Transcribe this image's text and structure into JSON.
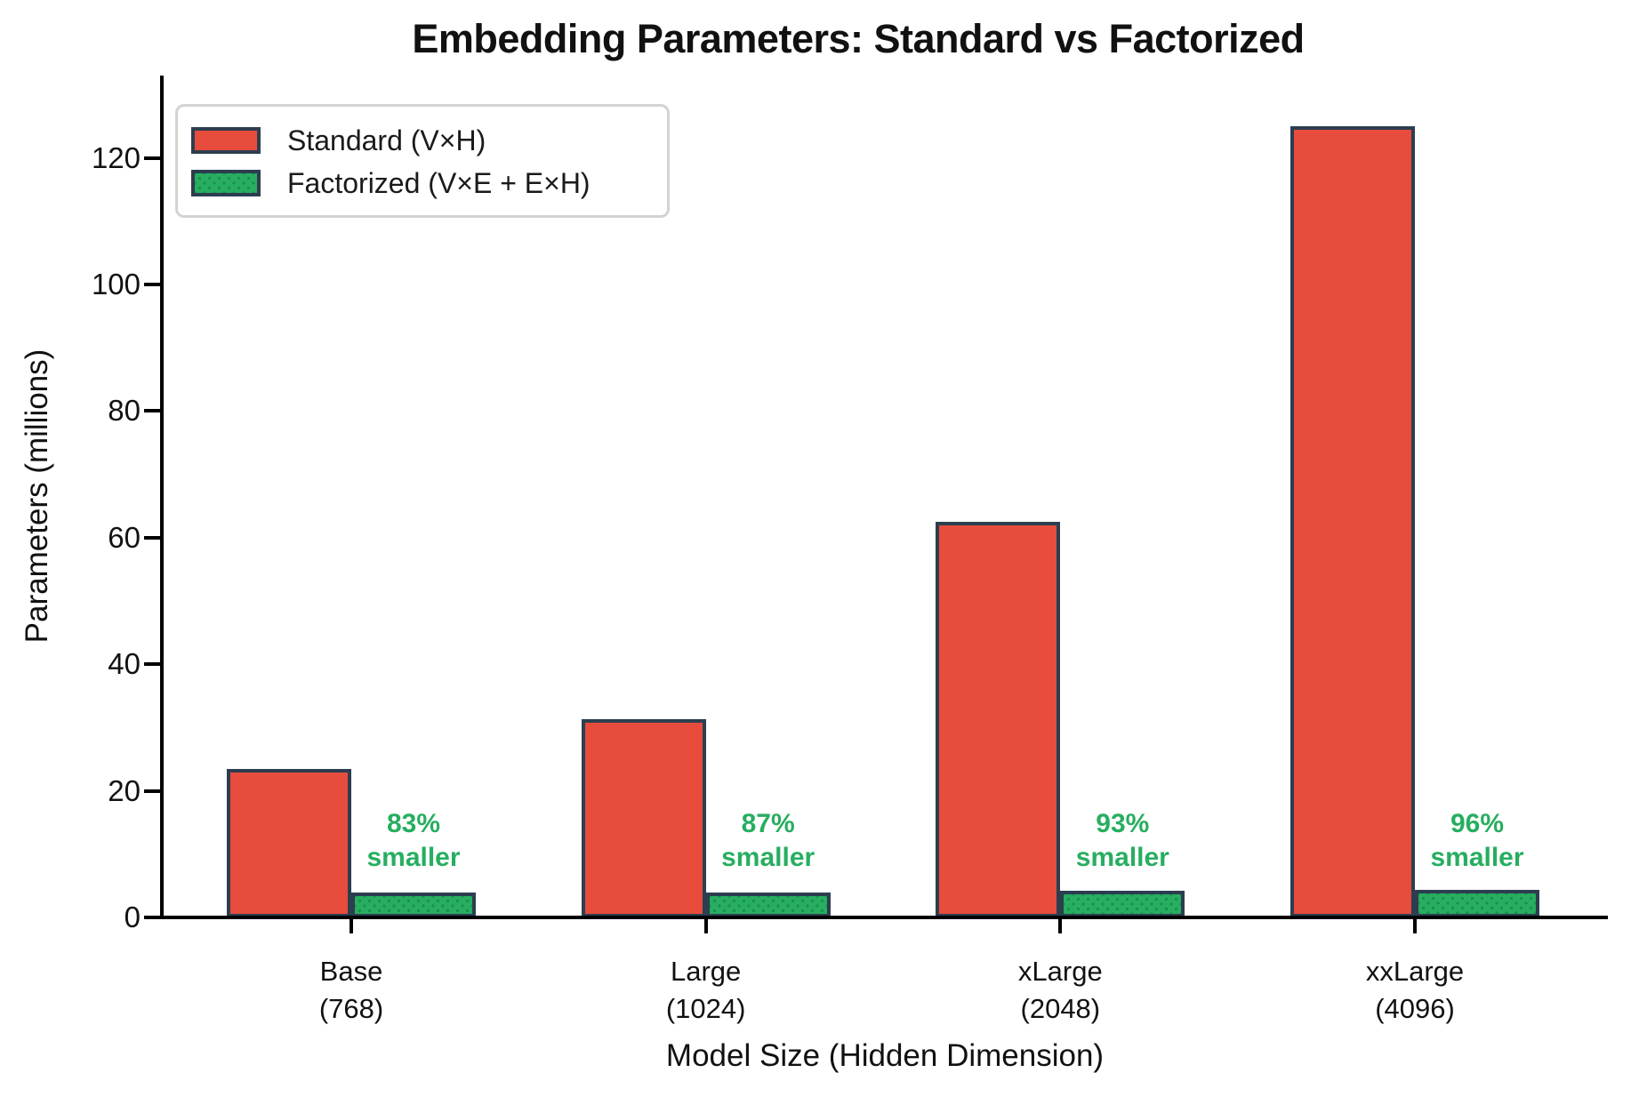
{
  "chart_data": {
    "type": "bar",
    "title": "Embedding Parameters: Standard vs Factorized",
    "xlabel": "Model Size (Hidden Dimension)",
    "ylabel": "Parameters (millions)",
    "categories": [
      {
        "label": "Base",
        "sublabel": "(768)"
      },
      {
        "label": "Large",
        "sublabel": "(1024)"
      },
      {
        "label": "xLarge",
        "sublabel": "(2048)"
      },
      {
        "label": "xxLarge",
        "sublabel": "(4096)"
      }
    ],
    "series": [
      {
        "name": "Standard (V×H)",
        "color": "#e74c3c",
        "hatch": "none",
        "values": [
          23.4,
          31.3,
          62.5,
          125.0
        ]
      },
      {
        "name": "Factorized (V×E + E×H)",
        "color": "#27ae60",
        "hatch": "dots",
        "values": [
          4.0,
          4.0,
          4.2,
          4.4
        ]
      }
    ],
    "annotations": [
      {
        "pct": "83%",
        "word": "smaller"
      },
      {
        "pct": "87%",
        "word": "smaller"
      },
      {
        "pct": "93%",
        "word": "smaller"
      },
      {
        "pct": "96%",
        "word": "smaller"
      }
    ],
    "annotation_color": "#27ae60",
    "bar_edge_color": "#2c3e50",
    "yticks": [
      0,
      20,
      40,
      60,
      80,
      100,
      120
    ],
    "ylim": [
      0,
      133
    ],
    "grid": false,
    "legend_position": "upper left"
  }
}
